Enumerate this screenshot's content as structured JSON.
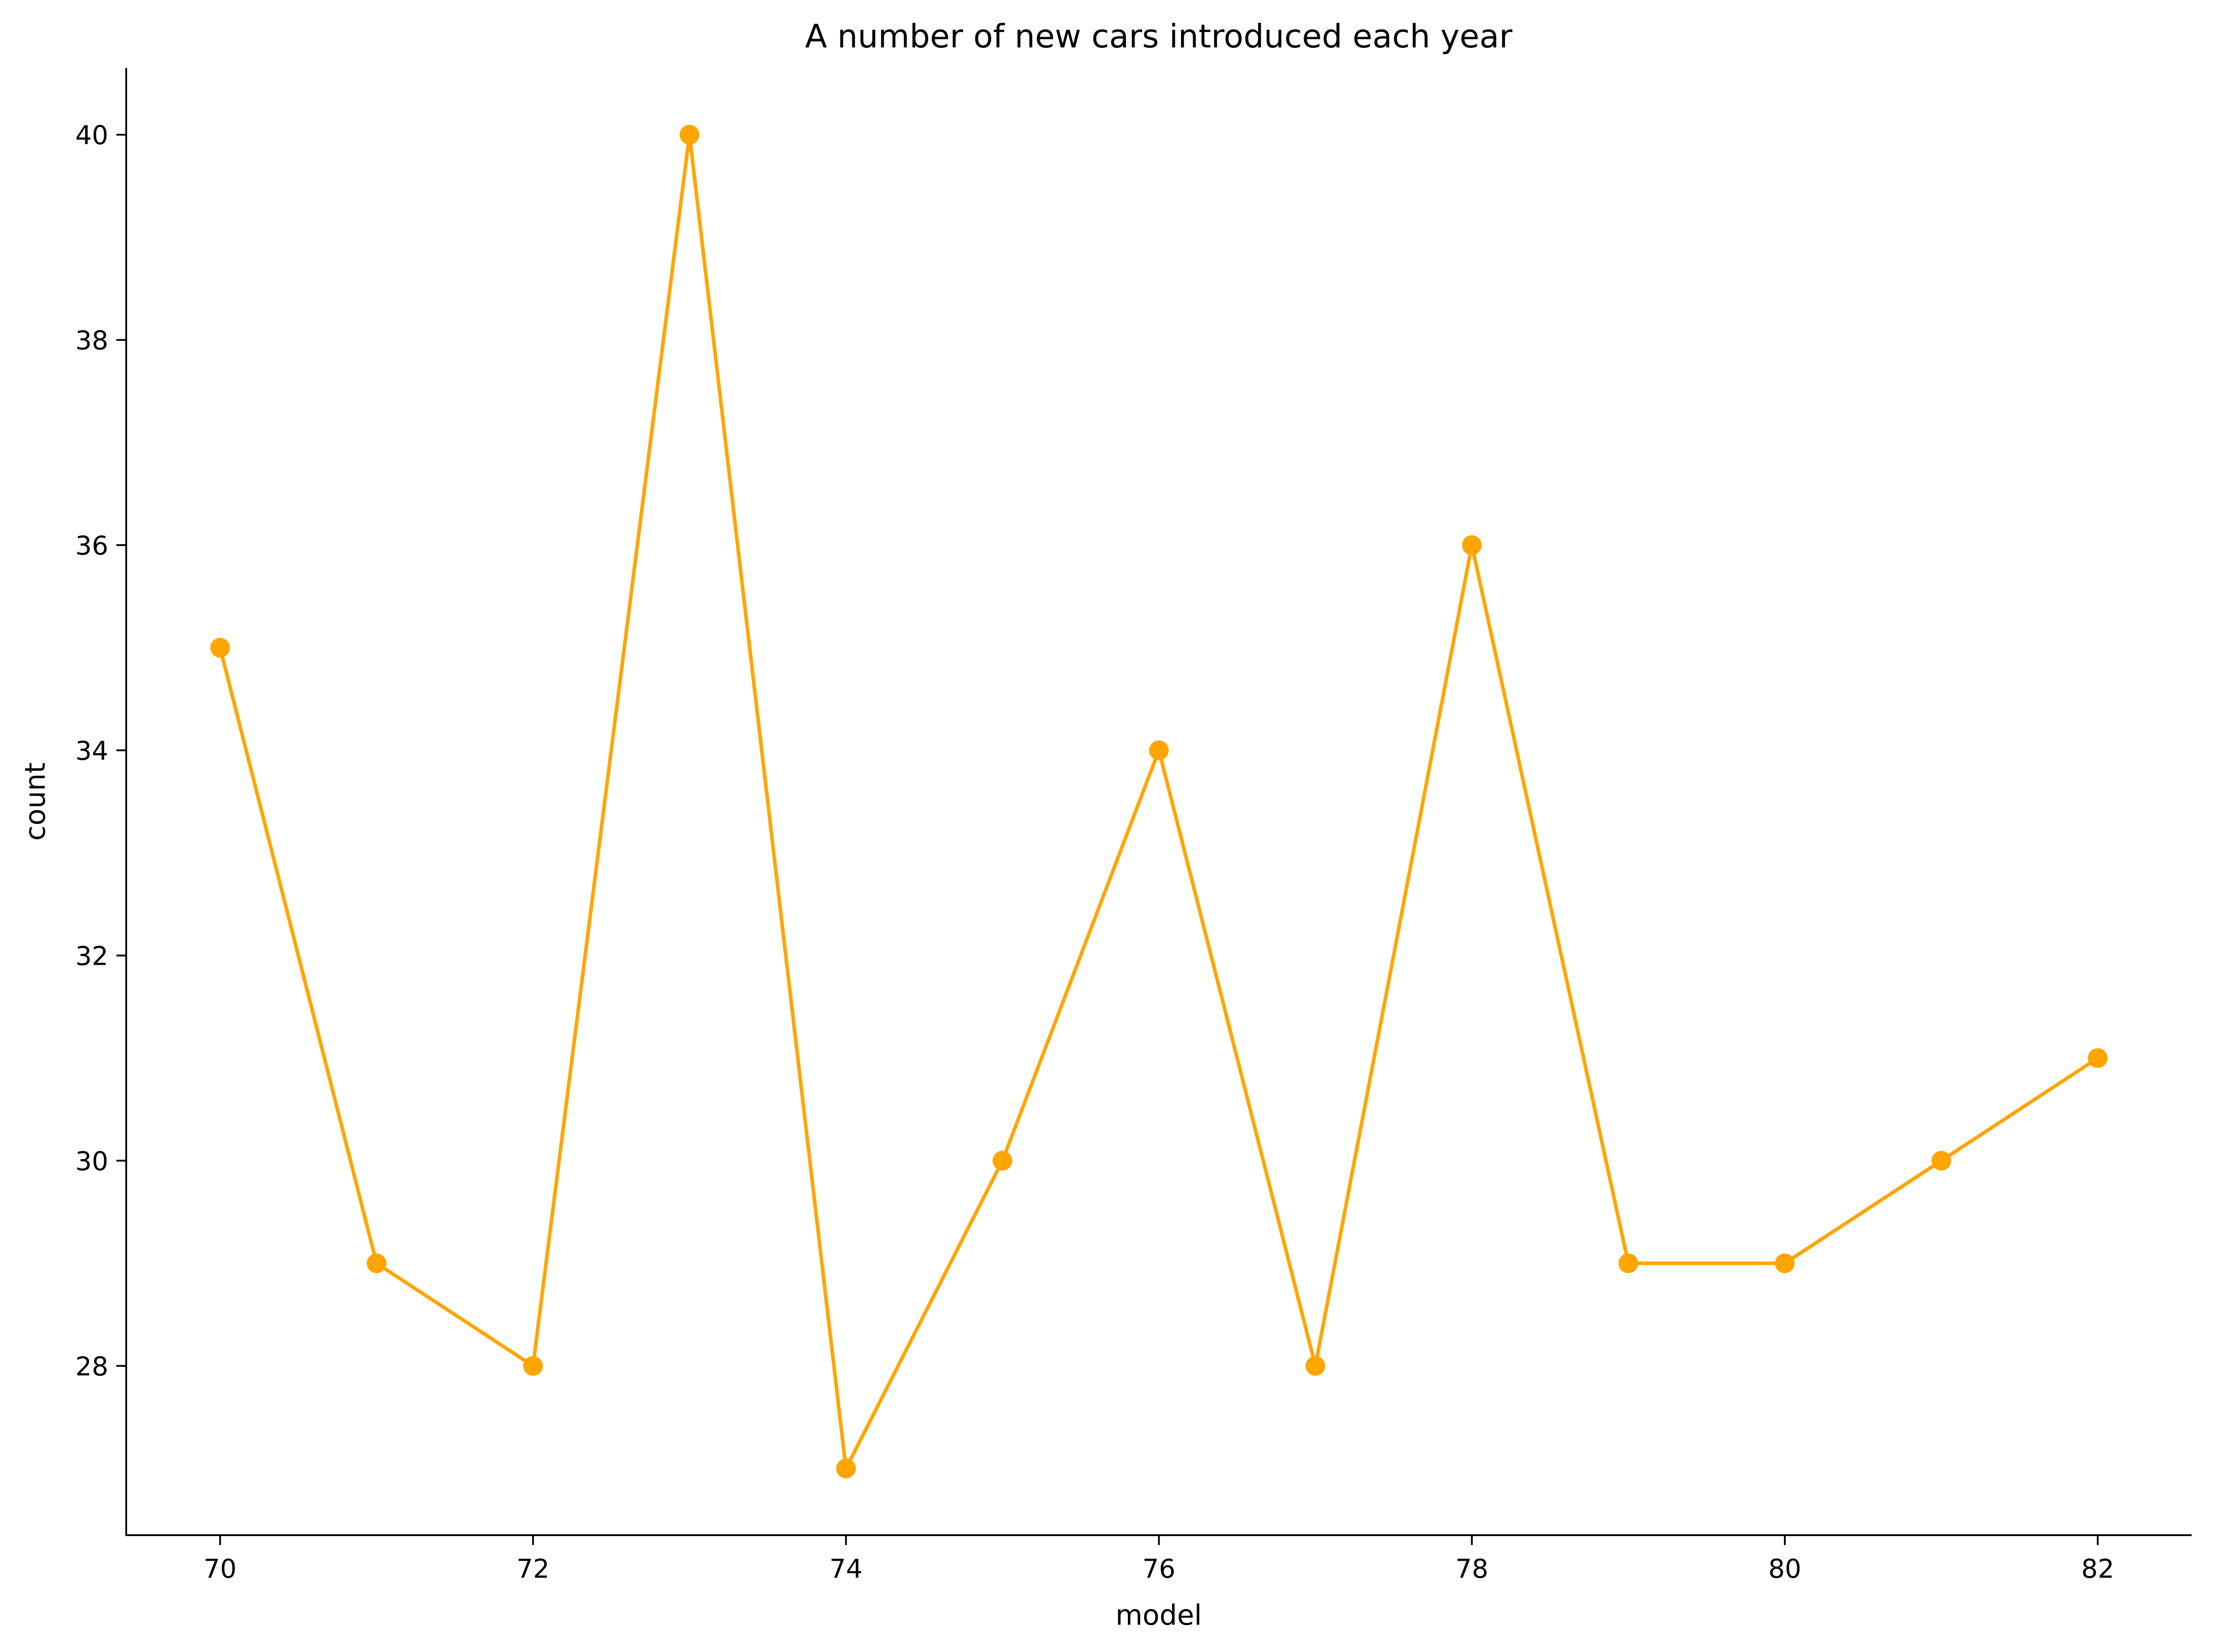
{
  "chart_data": {
    "type": "line",
    "title": "A number of new cars introduced each year",
    "xlabel": "model",
    "ylabel": "count",
    "x": [
      70,
      71,
      72,
      73,
      74,
      75,
      76,
      77,
      78,
      79,
      80,
      81,
      82
    ],
    "series": [
      {
        "values": [
          35,
          29,
          28,
          40,
          27,
          30,
          34,
          28,
          36,
          29,
          29,
          30,
          31
        ],
        "color": "#FFA500"
      }
    ],
    "xticks": [
      "70",
      "72",
      "74",
      "76",
      "78",
      "80",
      "82"
    ],
    "yticks": [
      "28",
      "30",
      "32",
      "34",
      "36",
      "38",
      "40"
    ],
    "xlim": [
      69.4,
      82.6
    ],
    "ylim": [
      26.35,
      40.65
    ],
    "grid": false,
    "legend": "none",
    "markers": "filled-circle",
    "spines": "left-bottom"
  }
}
